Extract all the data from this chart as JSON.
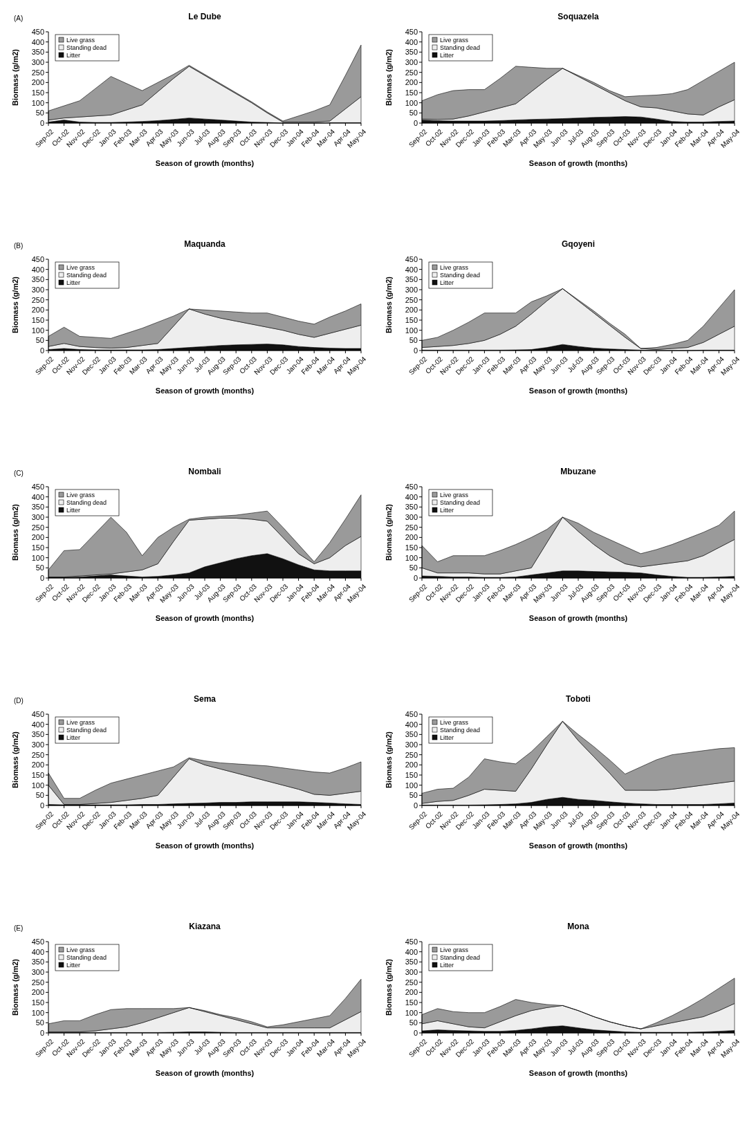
{
  "chart_data": [
    {
      "type": "area",
      "stacked": true,
      "title": "Le Dube",
      "annotations": [
        "(A)"
      ],
      "xlabel": "Season of growth (months)",
      "ylabel": "Biomass (g/m2)",
      "legend": "top left",
      "ylim": [
        0,
        450
      ],
      "yticks": [
        0,
        50,
        100,
        150,
        200,
        250,
        300,
        350,
        400,
        450
      ],
      "categories": [
        "Sep-02",
        "Oct-02",
        "Nov-02",
        "Dec-02",
        "Jan-03",
        "Feb-03",
        "Mar-03",
        "Apr-03",
        "May-03",
        "Jun-03",
        "Jul-03",
        "Aug-03",
        "Sep-03",
        "Oct-03",
        "Nov-03",
        "Dec-03",
        "Jan-04",
        "Feb-04",
        "Mar-04",
        "Apr-04",
        "May-04"
      ],
      "series": [
        {
          "name": "Litter",
          "color": "#111111",
          "values": [
            5,
            15,
            5,
            3,
            3,
            5,
            8,
            12,
            18,
            25,
            20,
            15,
            10,
            5,
            3,
            0,
            0,
            0,
            2,
            2,
            2
          ]
        },
        {
          "name": "Standing dead",
          "color": "#eeeeee",
          "values": [
            10,
            10,
            25,
            32,
            37,
            60,
            82,
            143,
            202,
            255,
            215,
            175,
            135,
            95,
            47,
            5,
            5,
            5,
            8,
            68,
            128
          ]
        },
        {
          "name": "Live grass",
          "color": "#9a9a9a",
          "values": [
            45,
            60,
            80,
            135,
            190,
            130,
            70,
            45,
            20,
            5,
            5,
            5,
            5,
            5,
            5,
            5,
            30,
            55,
            80,
            165,
            255
          ]
        }
      ]
    },
    {
      "type": "area",
      "stacked": true,
      "title": "Soquazela",
      "xlabel": "Season of growth (months)",
      "ylabel": "Biomass (g/m2)",
      "legend": "top left",
      "ylim": [
        0,
        450
      ],
      "yticks": [
        0,
        50,
        100,
        150,
        200,
        250,
        300,
        350,
        400,
        450
      ],
      "categories": [
        "Sep-02",
        "Oct-02",
        "Nov-02",
        "Dec-02",
        "Jan-03",
        "Feb-03",
        "Mar-03",
        "Apr-03",
        "May-03",
        "Jun-03",
        "Jul-03",
        "Aug-03",
        "Sep-03",
        "Oct-03",
        "Nov-03",
        "Dec-03",
        "Jan-04",
        "Feb-04",
        "Mar-04",
        "Apr-04",
        "May-04"
      ],
      "series": [
        {
          "name": "Litter",
          "color": "#111111",
          "values": [
            15,
            12,
            10,
            10,
            10,
            12,
            15,
            18,
            20,
            22,
            25,
            28,
            30,
            32,
            30,
            20,
            8,
            5,
            5,
            8,
            10
          ]
        },
        {
          "name": "Standing dead",
          "color": "#eeeeee",
          "values": [
            5,
            6,
            10,
            25,
            45,
            63,
            80,
            137,
            195,
            248,
            205,
            162,
            120,
            78,
            50,
            55,
            52,
            40,
            35,
            72,
            105
          ]
        },
        {
          "name": "Live grass",
          "color": "#9a9a9a",
          "values": [
            90,
            122,
            140,
            130,
            110,
            145,
            185,
            120,
            55,
            0,
            5,
            10,
            10,
            20,
            55,
            63,
            85,
            120,
            170,
            175,
            185
          ]
        }
      ]
    },
    {
      "type": "area",
      "stacked": true,
      "title": "Maquanda",
      "annotations": [
        "(B)"
      ],
      "xlabel": "Season of growth (months)",
      "ylabel": "Biomass (g/m2)",
      "legend": "top left",
      "ylim": [
        0,
        450
      ],
      "yticks": [
        0,
        50,
        100,
        150,
        200,
        250,
        300,
        350,
        400,
        450
      ],
      "categories": [
        "Sep-02",
        "Oct-02",
        "Nov-02",
        "Dec-02",
        "Jan-03",
        "Feb-03",
        "Mar-03",
        "Apr-03",
        "May-03",
        "Jun-03",
        "Jul-03",
        "Aug-03",
        "Sep-03",
        "Oct-03",
        "Nov-03",
        "Dec-03",
        "Jan-04",
        "Feb-04",
        "Mar-04",
        "Apr-04",
        "May-04"
      ],
      "series": [
        {
          "name": "Litter",
          "color": "#111111",
          "values": [
            5,
            10,
            5,
            3,
            3,
            3,
            3,
            5,
            10,
            15,
            20,
            25,
            28,
            30,
            32,
            28,
            20,
            15,
            12,
            10,
            10
          ]
        },
        {
          "name": "Standing dead",
          "color": "#eeeeee",
          "values": [
            15,
            25,
            15,
            12,
            9,
            12,
            22,
            30,
            110,
            190,
            160,
            135,
            117,
            100,
            83,
            72,
            60,
            50,
            73,
            95,
            115
          ]
        },
        {
          "name": "Live grass",
          "color": "#9a9a9a",
          "values": [
            50,
            80,
            50,
            50,
            48,
            70,
            85,
            105,
            50,
            0,
            20,
            35,
            45,
            55,
            70,
            65,
            65,
            65,
            80,
            90,
            105
          ]
        }
      ]
    },
    {
      "type": "area",
      "stacked": true,
      "title": "Gqoyeni",
      "xlabel": "Season of growth (months)",
      "ylabel": "Biomass (g/m2)",
      "legend": "top left",
      "ylim": [
        0,
        450
      ],
      "yticks": [
        0,
        50,
        100,
        150,
        200,
        250,
        300,
        350,
        400,
        450
      ],
      "categories": [
        "Sep-02",
        "Oct-02",
        "Nov-02",
        "Dec-02",
        "Jan-03",
        "Feb-03",
        "Mar-03",
        "Apr-03",
        "May-03",
        "Jun-03",
        "Jul-03",
        "Aug-03",
        "Sep-03",
        "Oct-03",
        "Nov-03",
        "Dec-03",
        "Jan-04",
        "Feb-04",
        "Mar-04",
        "Apr-04",
        "May-04"
      ],
      "series": [
        {
          "name": "Litter",
          "color": "#111111",
          "values": [
            2,
            2,
            2,
            2,
            2,
            2,
            3,
            5,
            15,
            30,
            20,
            12,
            8,
            5,
            2,
            0,
            0,
            0,
            2,
            2,
            2
          ]
        },
        {
          "name": "Standing dead",
          "color": "#eeeeee",
          "values": [
            13,
            18,
            23,
            33,
            48,
            78,
            117,
            175,
            230,
            275,
            225,
            173,
            117,
            60,
            8,
            5,
            10,
            15,
            38,
            78,
            118
          ]
        },
        {
          "name": "Live grass",
          "color": "#9a9a9a",
          "values": [
            35,
            45,
            75,
            105,
            135,
            105,
            65,
            60,
            25,
            0,
            5,
            10,
            10,
            15,
            0,
            10,
            20,
            35,
            80,
            130,
            180
          ]
        }
      ]
    },
    {
      "type": "area",
      "stacked": true,
      "title": "Nombali",
      "annotations": [
        "(C)"
      ],
      "xlabel": "Season of growth (months)",
      "ylabel": "Biomass (g/m2)",
      "legend": "top left",
      "ylim": [
        0,
        450
      ],
      "yticks": [
        0,
        50,
        100,
        150,
        200,
        250,
        300,
        350,
        400,
        450
      ],
      "categories": [
        "Sep-02",
        "Oct-02",
        "Nov-02",
        "Dec-02",
        "Jan-03",
        "Feb-03",
        "Mar-03",
        "Apr-03",
        "May-03",
        "Jun-03",
        "Jul-03",
        "Aug-03",
        "Sep-03",
        "Oct-03",
        "Nov-03",
        "Dec-03",
        "Jan-04",
        "Feb-04",
        "Mar-04",
        "Apr-04",
        "May-04"
      ],
      "series": [
        {
          "name": "Litter",
          "color": "#111111",
          "values": [
            3,
            3,
            5,
            10,
            15,
            10,
            5,
            8,
            15,
            25,
            55,
            75,
            95,
            110,
            120,
            95,
            65,
            40,
            35,
            35,
            35
          ]
        },
        {
          "name": "Standing dead",
          "color": "#eeeeee",
          "values": [
            2,
            2,
            5,
            5,
            5,
            20,
            35,
            62,
            165,
            260,
            235,
            220,
            200,
            180,
            160,
            105,
            55,
            30,
            65,
            125,
            170
          ]
        },
        {
          "name": "Live grass",
          "color": "#9a9a9a",
          "values": [
            35,
            130,
            130,
            205,
            280,
            195,
            70,
            130,
            70,
            5,
            10,
            10,
            15,
            30,
            50,
            50,
            45,
            10,
            75,
            130,
            205
          ]
        }
      ]
    },
    {
      "type": "area",
      "stacked": true,
      "title": "Mbuzane",
      "xlabel": "Season of growth (months)",
      "ylabel": "Biomass (g/m2)",
      "legend": "top left",
      "ylim": [
        0,
        450
      ],
      "yticks": [
        0,
        50,
        100,
        150,
        200,
        250,
        300,
        350,
        400,
        450
      ],
      "categories": [
        "Sep-02",
        "Oct-02",
        "Nov-02",
        "Dec-02",
        "Jan-03",
        "Feb-03",
        "Mar-03",
        "Apr-03",
        "May-03",
        "Jun-03",
        "Jul-03",
        "Aug-03",
        "Sep-03",
        "Oct-03",
        "Nov-03",
        "Dec-03",
        "Jan-04",
        "Feb-04",
        "Mar-04",
        "Apr-04",
        "May-04"
      ],
      "series": [
        {
          "name": "Litter",
          "color": "#111111",
          "values": [
            10,
            8,
            5,
            5,
            3,
            3,
            5,
            15,
            25,
            35,
            35,
            32,
            30,
            28,
            25,
            15,
            8,
            3,
            3,
            5,
            8
          ]
        },
        {
          "name": "Standing dead",
          "color": "#eeeeee",
          "values": [
            40,
            17,
            20,
            20,
            17,
            17,
            30,
            35,
            150,
            265,
            195,
            133,
            80,
            42,
            30,
            50,
            67,
            82,
            107,
            145,
            182
          ]
        },
        {
          "name": "Live grass",
          "color": "#9a9a9a",
          "values": [
            110,
            55,
            85,
            85,
            90,
            115,
            130,
            150,
            65,
            0,
            40,
            60,
            80,
            85,
            65,
            75,
            90,
            110,
            115,
            110,
            140
          ]
        }
      ]
    },
    {
      "type": "area",
      "stacked": true,
      "title": "Sema",
      "annotations": [
        "(D)"
      ],
      "xlabel": "Season of growth (months)",
      "ylabel": "Biomass (g/m2)",
      "legend": "top left",
      "ylim": [
        0,
        450
      ],
      "yticks": [
        0,
        50,
        100,
        150,
        200,
        250,
        300,
        350,
        400,
        450
      ],
      "categories": [
        "Sep-02",
        "Oct-02",
        "Nov-02",
        "Dec-02",
        "Jan-03",
        "Feb-03",
        "Mar-03",
        "Apr-03",
        "May-03",
        "Jun-03",
        "Jul-03",
        "Aug-03",
        "Sep-03",
        "Oct-03",
        "Nov-03",
        "Dec-03",
        "Jan-04",
        "Feb-04",
        "Mar-04",
        "Apr-04",
        "May-04"
      ],
      "series": [
        {
          "name": "Litter",
          "color": "#111111",
          "values": [
            5,
            3,
            3,
            3,
            3,
            3,
            5,
            5,
            8,
            10,
            12,
            15,
            15,
            18,
            18,
            18,
            18,
            15,
            12,
            8,
            5
          ]
        },
        {
          "name": "Standing dead",
          "color": "#eeeeee",
          "values": [
            95,
            2,
            2,
            7,
            12,
            22,
            30,
            45,
            132,
            220,
            188,
            165,
            145,
            122,
            102,
            82,
            62,
            40,
            38,
            52,
            65
          ]
        },
        {
          "name": "Live grass",
          "color": "#9a9a9a",
          "values": [
            60,
            30,
            30,
            65,
            95,
            105,
            115,
            120,
            50,
            5,
            20,
            30,
            45,
            60,
            75,
            85,
            95,
            110,
            110,
            125,
            145
          ]
        }
      ]
    },
    {
      "type": "area",
      "stacked": true,
      "title": "Toboti",
      "xlabel": "Season of growth (months)",
      "ylabel": "Biomass (g/m2)",
      "legend": "top left",
      "ylim": [
        0,
        450
      ],
      "yticks": [
        0,
        50,
        100,
        150,
        200,
        250,
        300,
        350,
        400,
        450
      ],
      "categories": [
        "Sep-02",
        "Oct-02",
        "Nov-02",
        "Dec-02",
        "Jan-03",
        "Feb-03",
        "Mar-03",
        "Apr-03",
        "May-03",
        "Jun-03",
        "Jul-03",
        "Aug-03",
        "Sep-03",
        "Oct-03",
        "Nov-03",
        "Dec-03",
        "Jan-04",
        "Feb-04",
        "Mar-04",
        "Apr-04",
        "May-04"
      ],
      "series": [
        {
          "name": "Litter",
          "color": "#111111",
          "values": [
            2,
            2,
            2,
            2,
            3,
            5,
            8,
            15,
            30,
            40,
            30,
            25,
            18,
            12,
            8,
            5,
            5,
            5,
            5,
            8,
            12
          ]
        },
        {
          "name": "Standing dead",
          "color": "#eeeeee",
          "values": [
            8,
            18,
            23,
            48,
            77,
            70,
            62,
            165,
            270,
            375,
            290,
            215,
            142,
            63,
            67,
            70,
            75,
            85,
            95,
            102,
            108
          ]
        },
        {
          "name": "Live grass",
          "color": "#9a9a9a",
          "values": [
            50,
            60,
            60,
            90,
            150,
            140,
            135,
            85,
            40,
            0,
            30,
            50,
            65,
            80,
            115,
            150,
            170,
            170,
            170,
            170,
            165
          ]
        }
      ]
    },
    {
      "type": "area",
      "stacked": true,
      "title": "Kiazana",
      "annotations": [
        "(E)"
      ],
      "xlabel": "Season of growth (months)",
      "ylabel": "Biomass (g/m2)",
      "legend": "top left",
      "ylim": [
        0,
        450
      ],
      "yticks": [
        0,
        50,
        100,
        150,
        200,
        250,
        300,
        350,
        400,
        450
      ],
      "categories": [
        "Sep-02",
        "Oct-02",
        "Nov-02",
        "Dec-02",
        "Jan-03",
        "Feb-03",
        "Mar-03",
        "Apr-03",
        "May-03",
        "Jun-03",
        "Jul-03",
        "Aug-03",
        "Sep-03",
        "Oct-03",
        "Nov-03",
        "Dec-03",
        "Jan-04",
        "Feb-04",
        "Mar-04",
        "Apr-04",
        "May-04"
      ],
      "series": [
        {
          "name": "Litter",
          "color": "#111111",
          "values": [
            2,
            2,
            2,
            2,
            2,
            2,
            2,
            2,
            3,
            5,
            5,
            3,
            2,
            2,
            2,
            2,
            2,
            2,
            2,
            2,
            2
          ]
        },
        {
          "name": "Standing dead",
          "color": "#eeeeee",
          "values": [
            3,
            3,
            3,
            8,
            18,
            28,
            48,
            73,
            97,
            120,
            100,
            82,
            63,
            43,
            23,
            23,
            23,
            23,
            23,
            63,
            103
          ]
        },
        {
          "name": "Live grass",
          "color": "#9a9a9a",
          "values": [
            40,
            55,
            55,
            80,
            95,
            90,
            70,
            45,
            20,
            0,
            5,
            5,
            10,
            10,
            5,
            15,
            30,
            45,
            60,
            105,
            160
          ]
        }
      ]
    },
    {
      "type": "area",
      "stacked": true,
      "title": "Mona",
      "xlabel": "Season of growth (months)",
      "ylabel": "Biomass (g/m2)",
      "legend": "top left",
      "ylim": [
        0,
        450
      ],
      "yticks": [
        0,
        50,
        100,
        150,
        200,
        250,
        300,
        350,
        400,
        450
      ],
      "categories": [
        "Sep-02",
        "Oct-02",
        "Nov-02",
        "Dec-02",
        "Jan-03",
        "Feb-03",
        "Mar-03",
        "Apr-03",
        "May-03",
        "Jun-03",
        "Jul-03",
        "Aug-03",
        "Sep-03",
        "Oct-03",
        "Nov-03",
        "Dec-03",
        "Jan-04",
        "Feb-04",
        "Mar-04",
        "Apr-04",
        "May-04"
      ],
      "series": [
        {
          "name": "Litter",
          "color": "#111111",
          "values": [
            10,
            15,
            12,
            10,
            8,
            8,
            12,
            20,
            30,
            35,
            25,
            15,
            10,
            5,
            3,
            3,
            3,
            3,
            5,
            8,
            12
          ]
        },
        {
          "name": "Standing dead",
          "color": "#eeeeee",
          "values": [
            35,
            45,
            33,
            20,
            17,
            47,
            73,
            90,
            95,
            100,
            85,
            65,
            45,
            30,
            17,
            32,
            47,
            62,
            75,
            102,
            133
          ]
        },
        {
          "name": "Live grass",
          "color": "#9a9a9a",
          "values": [
            45,
            60,
            60,
            70,
            75,
            75,
            80,
            40,
            15,
            0,
            0,
            0,
            0,
            0,
            0,
            15,
            35,
            60,
            90,
            110,
            125
          ]
        }
      ]
    }
  ]
}
